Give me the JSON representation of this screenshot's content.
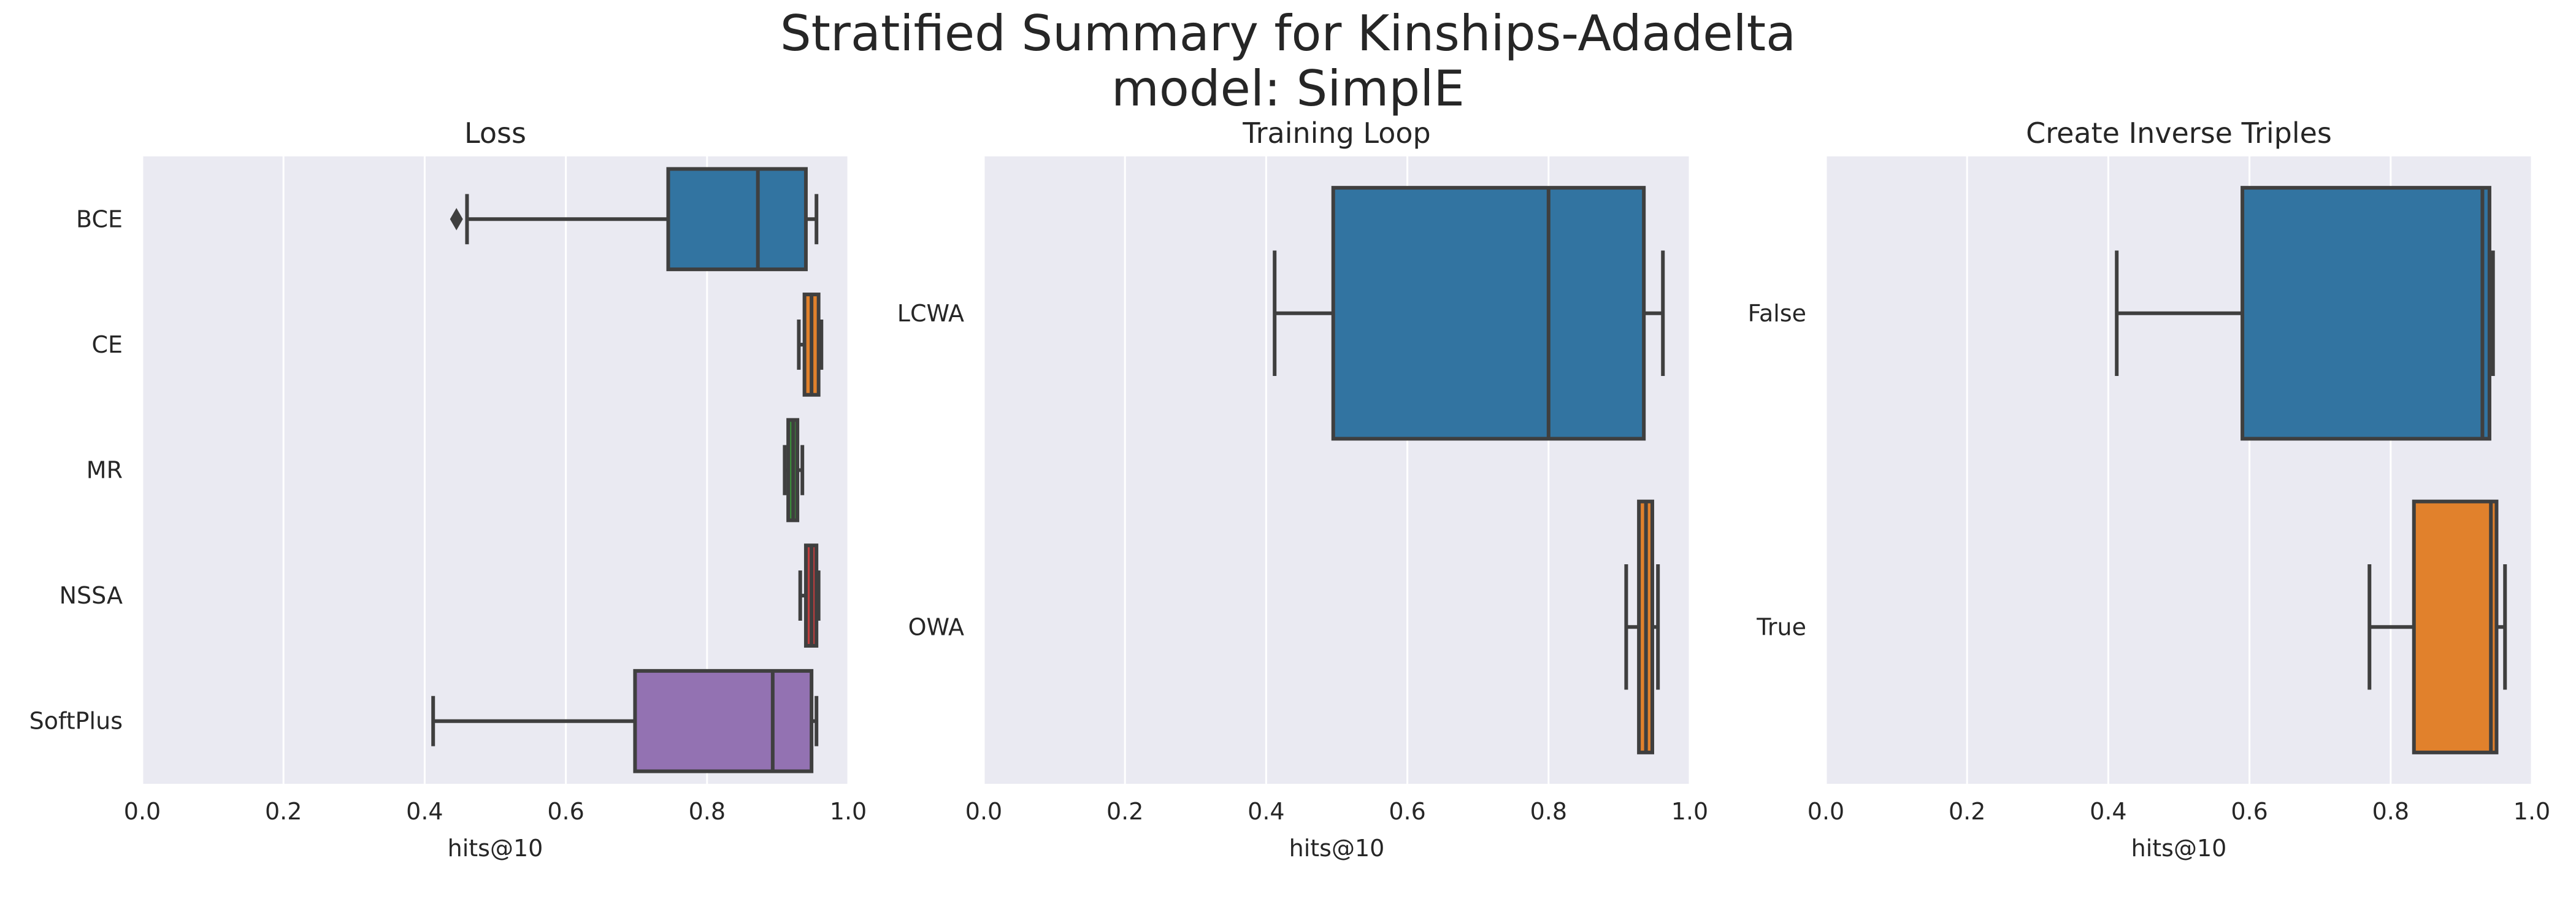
{
  "figure": {
    "title_line1": "Stratified Summary for Kinships-Adadelta",
    "title_line2": "model: SimplE"
  },
  "chart_data": [
    {
      "type": "box",
      "orientation": "horizontal",
      "title": "Loss",
      "xlabel": "hits@10",
      "ylabel": "",
      "xlim": [
        0.0,
        1.0
      ],
      "xticks": [
        0.0,
        0.2,
        0.4,
        0.6,
        0.8,
        1.0
      ],
      "grid": true,
      "categories": [
        "BCE",
        "CE",
        "MR",
        "NSSA",
        "SoftPlus"
      ],
      "boxes": [
        {
          "category": "BCE",
          "whisker_low": 0.46,
          "q1": 0.745,
          "median": 0.872,
          "q3": 0.94,
          "whisker_high": 0.955,
          "outliers": [
            0.445
          ],
          "color": "#3274a1"
        },
        {
          "category": "CE",
          "whisker_low": 0.93,
          "q1": 0.938,
          "median": 0.948,
          "q3": 0.958,
          "whisker_high": 0.962,
          "outliers": [],
          "color": "#e1812c"
        },
        {
          "category": "MR",
          "whisker_low": 0.91,
          "q1": 0.915,
          "median": 0.922,
          "q3": 0.928,
          "whisker_high": 0.935,
          "outliers": [],
          "color": "#3a923a"
        },
        {
          "category": "NSSA",
          "whisker_low": 0.932,
          "q1": 0.94,
          "median": 0.948,
          "q3": 0.955,
          "whisker_high": 0.958,
          "outliers": [],
          "color": "#c03d3e"
        },
        {
          "category": "SoftPlus",
          "whisker_low": 0.412,
          "q1": 0.698,
          "median": 0.893,
          "q3": 0.948,
          "whisker_high": 0.955,
          "outliers": [],
          "color": "#9372b2"
        }
      ]
    },
    {
      "type": "box",
      "orientation": "horizontal",
      "title": "Training Loop",
      "xlabel": "hits@10",
      "ylabel": "",
      "xlim": [
        0.0,
        1.0
      ],
      "xticks": [
        0.0,
        0.2,
        0.4,
        0.6,
        0.8,
        1.0
      ],
      "grid": true,
      "categories": [
        "LCWA",
        "OWA"
      ],
      "boxes": [
        {
          "category": "LCWA",
          "whisker_low": 0.412,
          "q1": 0.495,
          "median": 0.8,
          "q3": 0.935,
          "whisker_high": 0.962,
          "outliers": [],
          "color": "#3274a1"
        },
        {
          "category": "OWA",
          "whisker_low": 0.91,
          "q1": 0.928,
          "median": 0.938,
          "q3": 0.947,
          "whisker_high": 0.955,
          "outliers": [],
          "color": "#e1812c"
        }
      ]
    },
    {
      "type": "box",
      "orientation": "horizontal",
      "title": "Create Inverse Triples",
      "xlabel": "hits@10",
      "ylabel": "",
      "xlim": [
        0.0,
        1.0
      ],
      "xticks": [
        0.0,
        0.2,
        0.4,
        0.6,
        0.8,
        1.0
      ],
      "grid": true,
      "categories": [
        "False",
        "True"
      ],
      "boxes": [
        {
          "category": "False",
          "whisker_low": 0.412,
          "q1": 0.59,
          "median": 0.93,
          "q3": 0.94,
          "whisker_high": 0.945,
          "outliers": [],
          "color": "#3274a1"
        },
        {
          "category": "True",
          "whisker_low": 0.77,
          "q1": 0.833,
          "median": 0.942,
          "q3": 0.95,
          "whisker_high": 0.962,
          "outliers": [],
          "color": "#e1812c"
        }
      ]
    }
  ]
}
